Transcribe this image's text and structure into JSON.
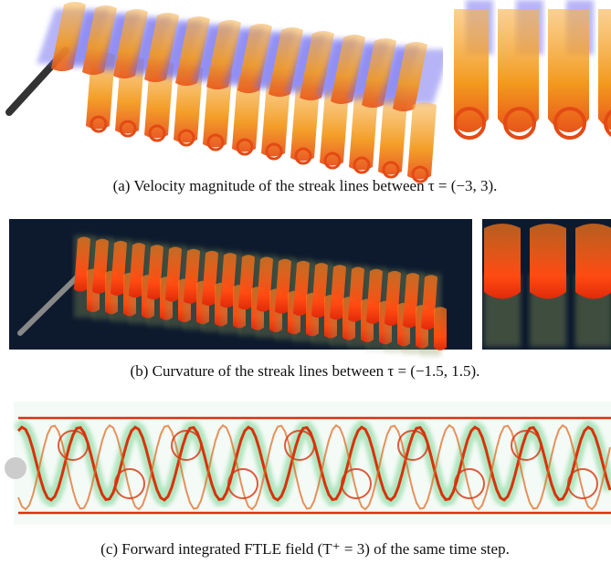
{
  "figures": [
    {
      "caption": "(a) Velocity magnitude of the streak lines between τ = (−3, 3)."
    },
    {
      "caption": "(b) Curvature of the streak lines between τ = (−1.5, 1.5)."
    },
    {
      "caption": "(c) Forward integrated FTLE field (T⁺ = 3) of the same time step."
    }
  ]
}
